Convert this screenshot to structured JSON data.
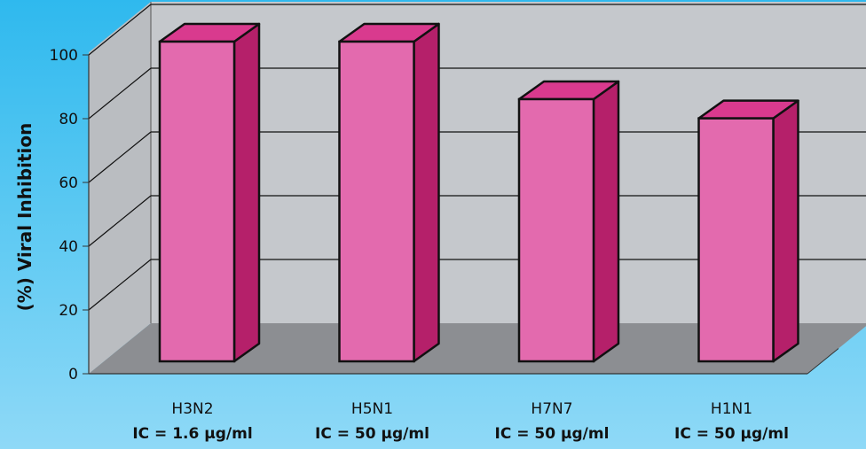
{
  "chart_data": {
    "type": "bar",
    "title": "",
    "ylabel": "(%) Viral Inhibition",
    "xlabel": "",
    "ylim": [
      0,
      100
    ],
    "yticks": [
      0,
      20,
      40,
      60,
      80,
      100
    ],
    "grid": true,
    "categories": [
      "H3N2",
      "H5N1",
      "H7N7",
      "H1N1"
    ],
    "sublabels": [
      "IC = 1.6 μg/ml",
      "IC = 50 μg/ml",
      "IC = 50 μg/ml",
      "IC = 50 μg/ml"
    ],
    "values": [
      100,
      100,
      82,
      76
    ],
    "colors": {
      "bar_front": "#e36aae",
      "bar_side": "#b5206a",
      "bar_top": "#d93a8e",
      "wall": "#c5c8cc",
      "floor": "#8c8e92"
    }
  }
}
